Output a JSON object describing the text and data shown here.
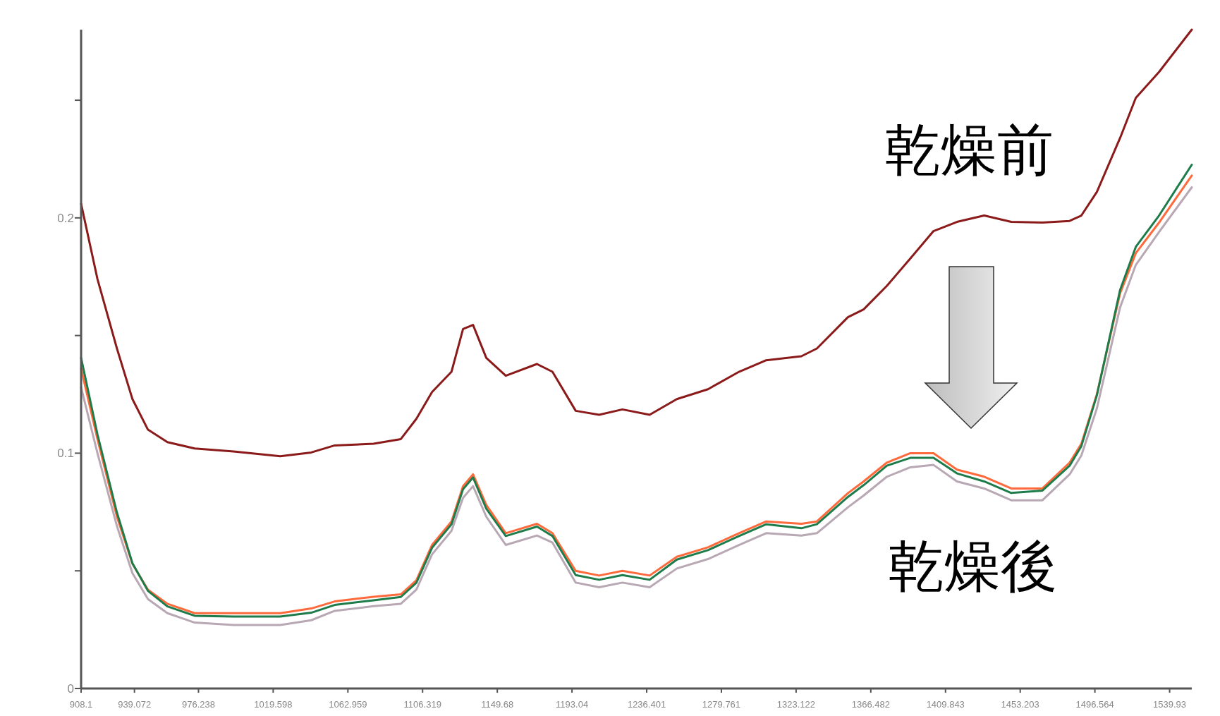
{
  "chart_data": {
    "type": "line",
    "xlim": [
      908.1,
      1552.8
    ],
    "ylim": [
      0,
      0.28
    ],
    "xticks": [
      908.1,
      939.072,
      976.238,
      1019.598,
      1062.959,
      1106.319,
      1149.68,
      1193.04,
      1236.401,
      1279.761,
      1323.122,
      1366.482,
      1409.843,
      1453.203,
      1496.564,
      1539.93
    ],
    "yticks": [
      0,
      {
        "value": 0.05,
        "label": null
      },
      0.1,
      {
        "value": 0.15,
        "label": null
      },
      0.2,
      {
        "value": 0.25,
        "label": null
      }
    ],
    "x": [
      908.1,
      917.6,
      928.9,
      937.9,
      946.9,
      958.2,
      974.0,
      996.6,
      1023.7,
      1041.7,
      1055.3,
      1077.9,
      1093.7,
      1102.7,
      1111.8,
      1123.1,
      1129.8,
      1135.6,
      1143.3,
      1154.6,
      1172.7,
      1181.7,
      1195.2,
      1208.8,
      1222.3,
      1238.1,
      1253.9,
      1272.0,
      1290.0,
      1305.8,
      1326.2,
      1335.2,
      1353.2,
      1362.3,
      1375.8,
      1389.4,
      1402.9,
      1416.5,
      1432.3,
      1448.0,
      1466.1,
      1481.9,
      1488.7,
      1497.7,
      1511.2,
      1520.3,
      1533.8,
      1552.8
    ],
    "series": [
      {
        "color": "#8b1a1a",
        "values": [
          0.206,
          0.174,
          0.1445,
          0.123,
          0.11,
          0.1047,
          0.102,
          0.1007,
          0.0987,
          0.1003,
          0.1033,
          0.104,
          0.106,
          0.1146,
          0.126,
          0.1346,
          0.1528,
          0.1545,
          0.1405,
          0.1329,
          0.1379,
          0.1346,
          0.118,
          0.1163,
          0.1186,
          0.1163,
          0.123,
          0.1272,
          0.1346,
          0.1395,
          0.1412,
          0.1445,
          0.1578,
          0.1611,
          0.1711,
          0.1827,
          0.1944,
          0.1983,
          0.201,
          0.1983,
          0.198,
          0.1987,
          0.201,
          0.211,
          0.234,
          0.251,
          0.262,
          0.28
        ]
      },
      {
        "color": "#b8a8b4",
        "values": [
          0.128,
          0.1,
          0.069,
          0.049,
          0.038,
          0.032,
          0.028,
          0.027,
          0.027,
          0.029,
          0.033,
          0.035,
          0.036,
          0.042,
          0.057,
          0.067,
          0.081,
          0.086,
          0.073,
          0.061,
          0.065,
          0.062,
          0.045,
          0.043,
          0.045,
          0.043,
          0.051,
          0.055,
          0.061,
          0.066,
          0.065,
          0.066,
          0.077,
          0.082,
          0.09,
          0.094,
          0.095,
          0.088,
          0.085,
          0.08,
          0.08,
          0.091,
          0.099,
          0.119,
          0.162,
          0.18,
          0.194,
          0.213
        ]
      },
      {
        "color": "#ff6a3d",
        "values": [
          0.136,
          0.106,
          0.073,
          0.053,
          0.042,
          0.036,
          0.032,
          0.032,
          0.032,
          0.034,
          0.037,
          0.039,
          0.04,
          0.046,
          0.061,
          0.071,
          0.086,
          0.091,
          0.078,
          0.066,
          0.07,
          0.066,
          0.05,
          0.048,
          0.05,
          0.048,
          0.056,
          0.06,
          0.066,
          0.071,
          0.07,
          0.071,
          0.083,
          0.088,
          0.096,
          0.1,
          0.1,
          0.093,
          0.09,
          0.085,
          0.085,
          0.096,
          0.104,
          0.125,
          0.168,
          0.185,
          0.198,
          0.218
        ]
      },
      {
        "color": "#1e7b4a",
        "values": [
          0.1405,
          0.108,
          0.0748,
          0.0532,
          0.0415,
          0.0349,
          0.0309,
          0.0306,
          0.0306,
          0.0322,
          0.0355,
          0.0375,
          0.0389,
          0.0449,
          0.0598,
          0.0698,
          0.0847,
          0.0897,
          0.0764,
          0.0648,
          0.0688,
          0.0648,
          0.0482,
          0.0462,
          0.0482,
          0.0462,
          0.0548,
          0.0588,
          0.0648,
          0.0698,
          0.0681,
          0.0698,
          0.0814,
          0.0864,
          0.0947,
          0.098,
          0.098,
          0.0914,
          0.088,
          0.0831,
          0.0841,
          0.0947,
          0.103,
          0.1246,
          0.1694,
          0.1877,
          0.201,
          0.2226
        ]
      }
    ],
    "annotations": [
      "乾燥前",
      "乾燥後"
    ],
    "grid": false,
    "marker": "none",
    "line_style": "solid"
  }
}
